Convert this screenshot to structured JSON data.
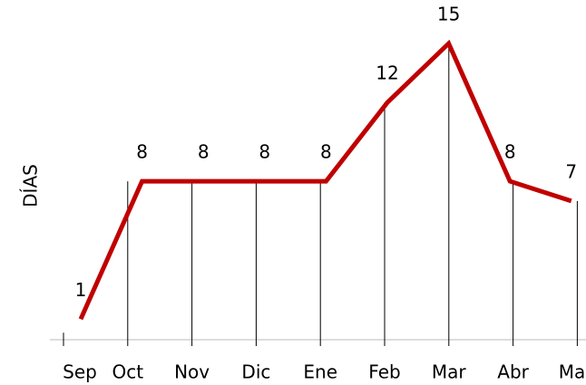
{
  "chart_data": {
    "type": "line",
    "y_label": "DÍAS",
    "categories": [
      "Sep",
      "Oct",
      "Nov",
      "Dic",
      "Ene",
      "Feb",
      "Mar",
      "Abr",
      "May"
    ],
    "values": [
      1,
      8,
      8,
      8,
      8,
      12,
      15,
      8,
      7
    ],
    "color": "#c00000",
    "ylim": [
      0,
      15
    ]
  }
}
